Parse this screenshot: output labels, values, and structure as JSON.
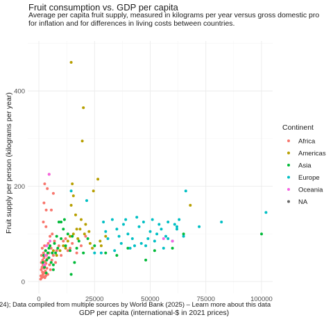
{
  "chart_data": {
    "type": "scatter",
    "title": "Fruit consumption vs. GDP per capita",
    "subtitle": [
      "Average per capita fruit supply, measured in kilograms per year versus gross domestic pro",
      "for inflation and for differences in living costs between countries."
    ],
    "xlabel": "GDP per capita (international-$ in 2021 prices)",
    "ylabel": "Fruit supply per person (kilograms per year)",
    "caption": "24); Data compiled from multiple sources by World Bank (2025) – Learn more about this data",
    "xlim": [
      -5000,
      105000
    ],
    "ylim": [
      -25,
      505
    ],
    "x_ticks": [
      0,
      25000,
      50000,
      75000,
      100000
    ],
    "x_tick_labels": [
      "0",
      "25000",
      "50000",
      "75000",
      "100000"
    ],
    "y_ticks": [
      0,
      200,
      400
    ],
    "y_tick_labels": [
      "0",
      "200",
      "400"
    ],
    "grid": true,
    "legend_placement": "right",
    "legend": {
      "title": "Continent",
      "entries": [
        "Africa",
        "Americas",
        "Asia",
        "Europe",
        "Oceania",
        "NA"
      ]
    },
    "colors": {
      "Africa": "#F8766D",
      "Americas": "#B79F00",
      "Asia": "#00BA38",
      "Europe": "#00BFC4",
      "Oceania": "#F564E3",
      "NA": "#666666"
    },
    "series": [
      {
        "name": "Africa",
        "points": [
          [
            800,
            5
          ],
          [
            900,
            12
          ],
          [
            1000,
            25
          ],
          [
            1100,
            40
          ],
          [
            1200,
            55
          ],
          [
            1300,
            8
          ],
          [
            1400,
            30
          ],
          [
            1500,
            70
          ],
          [
            1600,
            20
          ],
          [
            1700,
            45
          ],
          [
            1800,
            15
          ],
          [
            1900,
            35
          ],
          [
            2000,
            10
          ],
          [
            2100,
            60
          ],
          [
            2200,
            28
          ],
          [
            2300,
            50
          ],
          [
            2400,
            18
          ],
          [
            2500,
            75
          ],
          [
            2600,
            33
          ],
          [
            2700,
            8
          ],
          [
            2800,
            42
          ],
          [
            2900,
            22
          ],
          [
            3000,
            65
          ],
          [
            3100,
            12
          ],
          [
            3200,
            38
          ],
          [
            3400,
            55
          ],
          [
            3600,
            28
          ],
          [
            3800,
            48
          ],
          [
            4000,
            15
          ],
          [
            4200,
            80
          ],
          [
            4500,
            60
          ],
          [
            4800,
            35
          ],
          [
            5000,
            95
          ],
          [
            5200,
            25
          ],
          [
            5500,
            70
          ],
          [
            5800,
            45
          ],
          [
            6000,
            100
          ],
          [
            6500,
            55
          ],
          [
            7000,
            85
          ],
          [
            7500,
            40
          ],
          [
            8000,
            65
          ],
          [
            9000,
            75
          ],
          [
            10000,
            55
          ],
          [
            11000,
            85
          ],
          [
            12000,
            90
          ],
          [
            13000,
            65
          ],
          [
            14000,
            70
          ],
          [
            15000,
            80
          ],
          [
            17000,
            60
          ],
          [
            19000,
            75
          ],
          [
            21000,
            95
          ],
          [
            3300,
            150
          ],
          [
            4600,
            225
          ],
          [
            2600,
            205
          ],
          [
            3800,
            195
          ],
          [
            2300,
            165
          ],
          [
            6500,
            185
          ],
          [
            2000,
            125
          ],
          [
            3200,
            115
          ],
          [
            5600,
            150
          ]
        ]
      },
      {
        "name": "Americas",
        "points": [
          [
            14500,
            460
          ],
          [
            20000,
            365
          ],
          [
            19500,
            295
          ],
          [
            15000,
            205
          ],
          [
            24500,
            190
          ],
          [
            15500,
            180
          ],
          [
            26500,
            215
          ],
          [
            14500,
            160
          ],
          [
            16500,
            140
          ],
          [
            19000,
            130
          ],
          [
            21000,
            120
          ],
          [
            18500,
            110
          ],
          [
            14000,
            95
          ],
          [
            13000,
            85
          ],
          [
            17500,
            90
          ],
          [
            23000,
            80
          ],
          [
            27500,
            85
          ],
          [
            12000,
            70
          ],
          [
            11000,
            75
          ],
          [
            15500,
            100
          ],
          [
            17000,
            110
          ],
          [
            20500,
            100
          ],
          [
            22500,
            105
          ],
          [
            24000,
            70
          ],
          [
            30000,
            95
          ],
          [
            28000,
            75
          ],
          [
            68000,
            160
          ],
          [
            9500,
            65
          ],
          [
            8000,
            55
          ],
          [
            6500,
            65
          ]
        ]
      },
      {
        "name": "Asia",
        "points": [
          [
            1800,
            40
          ],
          [
            2200,
            55
          ],
          [
            2500,
            30
          ],
          [
            3000,
            65
          ],
          [
            3500,
            45
          ],
          [
            4000,
            60
          ],
          [
            4500,
            50
          ],
          [
            5000,
            75
          ],
          [
            5500,
            40
          ],
          [
            6000,
            60
          ],
          [
            6500,
            35
          ],
          [
            7000,
            80
          ],
          [
            7500,
            60
          ],
          [
            8000,
            95
          ],
          [
            8500,
            70
          ],
          [
            9000,
            125
          ],
          [
            10000,
            90
          ],
          [
            11000,
            110
          ],
          [
            12000,
            75
          ],
          [
            13000,
            100
          ],
          [
            14000,
            65
          ],
          [
            15000,
            95
          ],
          [
            16000,
            40
          ],
          [
            17000,
            70
          ],
          [
            18000,
            85
          ],
          [
            20000,
            60
          ],
          [
            22000,
            90
          ],
          [
            25000,
            75
          ],
          [
            30000,
            60
          ],
          [
            35000,
            55
          ],
          [
            40000,
            70
          ],
          [
            48000,
            45
          ],
          [
            52000,
            65
          ],
          [
            60000,
            70
          ],
          [
            65000,
            100
          ],
          [
            100000,
            100
          ],
          [
            14500,
            15
          ],
          [
            6500,
            25
          ],
          [
            3300,
            18
          ],
          [
            10000,
            125
          ],
          [
            11500,
            130
          ],
          [
            4500,
            70
          ]
        ]
      },
      {
        "name": "Europe",
        "points": [
          [
            14500,
            190
          ],
          [
            21500,
            170
          ],
          [
            29000,
            125
          ],
          [
            30000,
            105
          ],
          [
            31000,
            90
          ],
          [
            33000,
            130
          ],
          [
            35000,
            110
          ],
          [
            36000,
            95
          ],
          [
            38000,
            120
          ],
          [
            40000,
            100
          ],
          [
            42000,
            90
          ],
          [
            44000,
            135
          ],
          [
            45000,
            115
          ],
          [
            47000,
            125
          ],
          [
            48000,
            75
          ],
          [
            50000,
            105
          ],
          [
            51000,
            130
          ],
          [
            52000,
            85
          ],
          [
            54000,
            120
          ],
          [
            55000,
            110
          ],
          [
            57000,
            95
          ],
          [
            58000,
            125
          ],
          [
            60000,
            85
          ],
          [
            62000,
            115
          ],
          [
            63000,
            130
          ],
          [
            65000,
            95
          ],
          [
            66000,
            190
          ],
          [
            72000,
            115
          ],
          [
            82000,
            125
          ],
          [
            102000,
            145
          ],
          [
            25000,
            60
          ],
          [
            28000,
            60
          ],
          [
            37000,
            80
          ],
          [
            43000,
            75
          ],
          [
            56000,
            70
          ],
          [
            58000,
            90
          ],
          [
            46000,
            80
          ],
          [
            49000,
            90
          ],
          [
            53000,
            100
          ],
          [
            41000,
            70
          ],
          [
            34000,
            65
          ],
          [
            39000,
            130
          ],
          [
            61000,
            120
          ],
          [
            62000,
            110
          ]
        ]
      },
      {
        "name": "Oceania",
        "points": [
          [
            3500,
            75
          ],
          [
            5000,
            85
          ],
          [
            4600,
            225
          ],
          [
            2500,
            35
          ],
          [
            3000,
            55
          ],
          [
            56000,
            90
          ],
          [
            60000,
            85
          ]
        ]
      },
      {
        "name": "NA",
        "points": []
      }
    ]
  }
}
